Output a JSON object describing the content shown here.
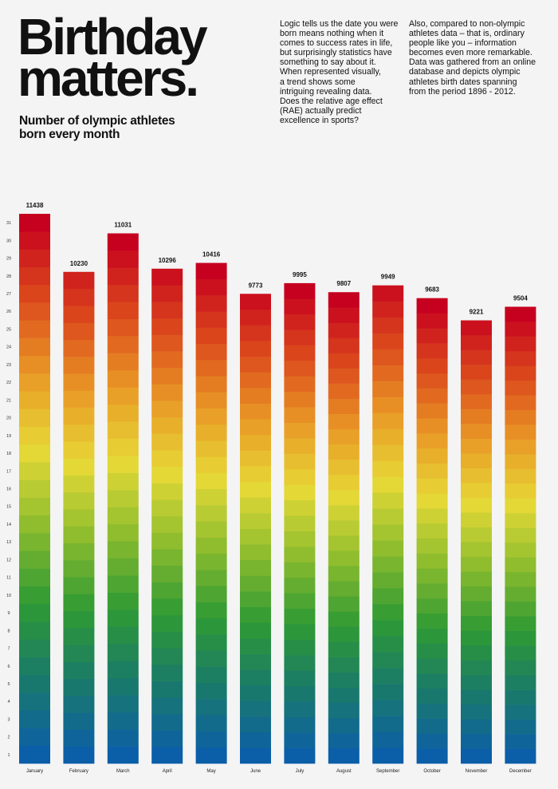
{
  "header": {
    "title_line1": "Birthday",
    "title_line2": "matters.",
    "subtitle_line1": "Number of olympic athletes",
    "subtitle_line2": "born every month",
    "paragraph1": "Logic tells us the date you were\nborn means nothing when it\ncomes to success rates in life,\nbut surprisingly statistics have\nsomething to say about it.\nWhen represented visually,\na trend shows some\nintriguing revealing data.\nDoes the relative age effect\n(RAE) actually predict\nexcellence in sports?",
    "paragraph2": "Also, compared to non-olympic\nathletes data – that is, ordinary\npeople like you – information\nbecomes even more remarkable.\nData was gathered from an online\ndatabase and depicts olympic\nathletes birth dates spanning\nfrom the period 1896 - 2012."
  },
  "chart_data": {
    "type": "bar",
    "title": "Number of olympic athletes born every month",
    "categories": [
      "January",
      "February",
      "March",
      "April",
      "May",
      "June",
      "July",
      "August",
      "September",
      "October",
      "November",
      "December"
    ],
    "values": [
      11438,
      10230,
      11031,
      10296,
      10416,
      9773,
      9995,
      9807,
      9949,
      9683,
      9221,
      9504
    ],
    "days_in_month": [
      31,
      29,
      31,
      30,
      31,
      30,
      31,
      31,
      30,
      31,
      30,
      31
    ],
    "y_ticks": [
      1,
      2,
      3,
      4,
      5,
      6,
      7,
      8,
      9,
      10,
      11,
      12,
      13,
      14,
      15,
      16,
      17,
      18,
      19,
      20,
      21,
      22,
      23,
      24,
      25,
      26,
      27,
      28,
      29,
      30,
      31
    ],
    "color_scale": [
      "#0b5ea8",
      "#1a7a6a",
      "#2f9a34",
      "#8cbc2e",
      "#e6d936",
      "#e99a26",
      "#db4a1c",
      "#c6001f"
    ],
    "ylim": [
      0,
      11438
    ],
    "grid": false,
    "legend": "none"
  }
}
